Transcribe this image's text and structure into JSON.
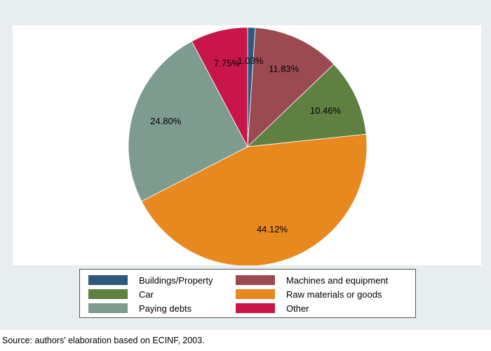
{
  "colors": {
    "frame": "#e8eef0",
    "slice_edge": "#ffffff"
  },
  "chart_data": {
    "type": "pie",
    "title": "",
    "start_angle_deg": 90,
    "direction": "clockwise",
    "slices": [
      {
        "label": "Buildings/Property",
        "value": 1.03,
        "value_label": "1.03%",
        "color": "#2f587e"
      },
      {
        "label": "Machines and equipment",
        "value": 11.83,
        "value_label": "11.83%",
        "color": "#9c4a51"
      },
      {
        "label": "Car",
        "value": 10.46,
        "value_label": "10.46%",
        "color": "#5f8040"
      },
      {
        "label": "Raw materials or goods",
        "value": 44.12,
        "value_label": "44.12%",
        "color": "#e8891f"
      },
      {
        "label": "Paying debts",
        "value": 24.8,
        "value_label": "24.80%",
        "color": "#7e9b8f"
      },
      {
        "label": "Other",
        "value": 7.75,
        "value_label": "7.75%",
        "color": "#c8164a"
      }
    ],
    "legend": {
      "position": "bottom",
      "columns": 2,
      "order": [
        "Buildings/Property",
        "Machines and equipment",
        "Car",
        "Raw materials or goods",
        "Paying debts",
        "Other"
      ]
    }
  },
  "source_note": "Source: authors' elaboration based on ECINF, 2003."
}
